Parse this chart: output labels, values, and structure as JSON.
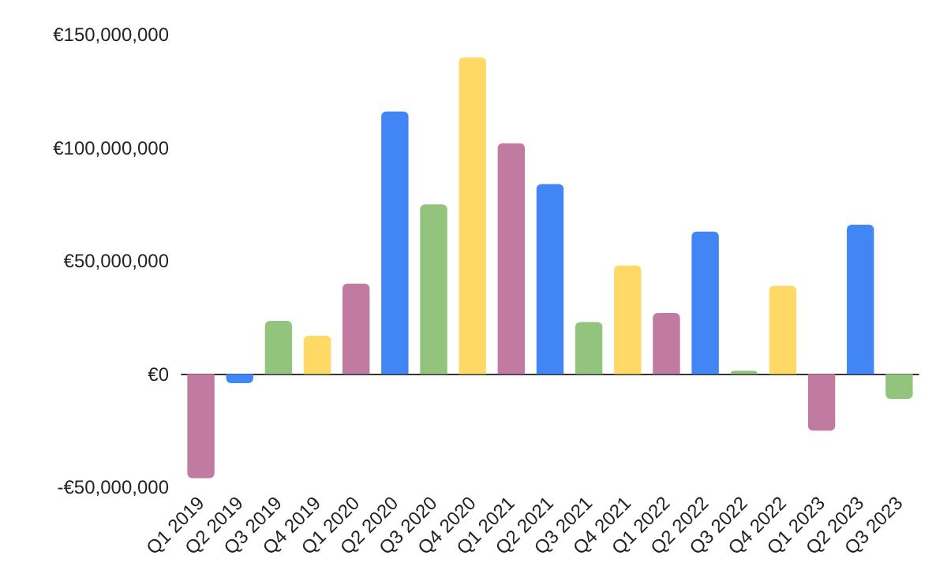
{
  "chart_data": {
    "type": "bar",
    "categories": [
      "Q1 2019",
      "Q2 2019",
      "Q3 2019",
      "Q4 2019",
      "Q1 2020",
      "Q2 2020",
      "Q3 2020",
      "Q4 2020",
      "Q1 2021",
      "Q2 2021",
      "Q3 2021",
      "Q4 2021",
      "Q1 2022",
      "Q2 2022",
      "Q3 2022",
      "Q4 2022",
      "Q1 2023",
      "Q2 2023",
      "Q3 2023"
    ],
    "values": [
      -46000000,
      -4000000,
      23500000,
      17000000,
      40000000,
      116000000,
      75000000,
      140000000,
      102000000,
      84000000,
      23000000,
      48000000,
      27000000,
      63000000,
      1500000,
      39000000,
      -25000000,
      66000000,
      -11000000
    ],
    "colors": [
      "#c27ba0",
      "#4285f4",
      "#93c47d",
      "#ffd966",
      "#c27ba0",
      "#4285f4",
      "#93c47d",
      "#ffd966",
      "#c27ba0",
      "#4285f4",
      "#93c47d",
      "#ffd966",
      "#c27ba0",
      "#4285f4",
      "#93c47d",
      "#ffd966",
      "#c27ba0",
      "#4285f4",
      "#93c47d"
    ],
    "ylim": [
      -50000000,
      150000000
    ],
    "yticks": [
      {
        "value": -50000000,
        "label": "-€50,000,000"
      },
      {
        "value": 0,
        "label": "€0"
      },
      {
        "value": 50000000,
        "label": "€50,000,000"
      },
      {
        "value": 100000000,
        "label": "€100,000,000"
      },
      {
        "value": 150000000,
        "label": "€150,000,000"
      }
    ]
  }
}
